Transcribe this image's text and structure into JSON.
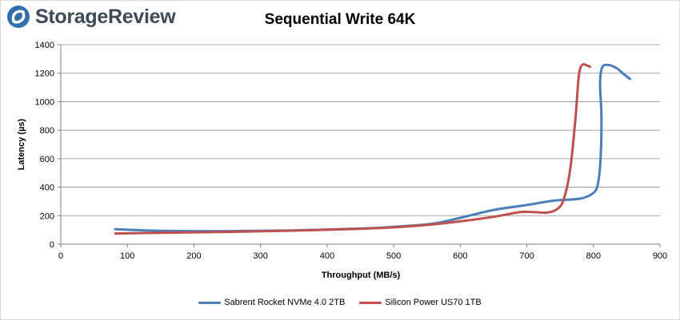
{
  "brand": {
    "name": "StorageReview",
    "logo_color": "#2f6fb0",
    "icon": "storagereview-logo-icon"
  },
  "chart_data": {
    "type": "line",
    "title": "Sequential Write 64K",
    "xlabel": "Throughput (MB/s)",
    "ylabel": "Latency (µs)",
    "xlim": [
      0,
      900
    ],
    "ylim": [
      0,
      1400
    ],
    "xticks": [
      0,
      100,
      200,
      300,
      400,
      500,
      600,
      700,
      800,
      900
    ],
    "yticks": [
      0,
      200,
      400,
      600,
      800,
      1000,
      1200,
      1400
    ],
    "grid": "horizontal",
    "legend_position": "bottom",
    "series": [
      {
        "name": "Sabrent Rocket NVMe 4.0 2TB",
        "color": "#4a7ebb",
        "points": [
          [
            82,
            105
          ],
          [
            150,
            94
          ],
          [
            250,
            92
          ],
          [
            350,
            97
          ],
          [
            450,
            110
          ],
          [
            500,
            122
          ],
          [
            560,
            145
          ],
          [
            600,
            185
          ],
          [
            650,
            240
          ],
          [
            700,
            275
          ],
          [
            740,
            305
          ],
          [
            780,
            320
          ],
          [
            800,
            360
          ],
          [
            807,
            430
          ],
          [
            811,
            620
          ],
          [
            812,
            900
          ],
          [
            810,
            1120
          ],
          [
            813,
            1240
          ],
          [
            822,
            1258
          ],
          [
            835,
            1235
          ],
          [
            845,
            1195
          ],
          [
            855,
            1160
          ]
        ]
      },
      {
        "name": "Silicon Power US70 1TB",
        "color": "#c0504d",
        "points": [
          [
            82,
            75
          ],
          [
            150,
            80
          ],
          [
            250,
            86
          ],
          [
            350,
            95
          ],
          [
            450,
            108
          ],
          [
            500,
            118
          ],
          [
            550,
            135
          ],
          [
            600,
            160
          ],
          [
            650,
            192
          ],
          [
            690,
            225
          ],
          [
            710,
            225
          ],
          [
            730,
            222
          ],
          [
            745,
            245
          ],
          [
            755,
            310
          ],
          [
            765,
            520
          ],
          [
            773,
            880
          ],
          [
            778,
            1180
          ],
          [
            783,
            1258
          ],
          [
            790,
            1255
          ],
          [
            795,
            1245
          ]
        ]
      }
    ]
  }
}
